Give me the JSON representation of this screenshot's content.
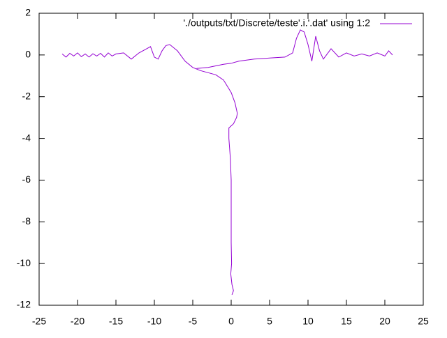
{
  "chart_data": {
    "type": "line",
    "x": [
      -22,
      -21.5,
      -21,
      -20.5,
      -20,
      -19.5,
      -19,
      -18.5,
      -18,
      -17.5,
      -17,
      -16.5,
      -16,
      -15.5,
      -15,
      -14,
      -13,
      -12,
      -11,
      -10.5,
      -10,
      -9.5,
      -9,
      -8.5,
      -8,
      -7,
      -6,
      -5,
      -4,
      -3,
      -2,
      -1,
      -0.5,
      0,
      0.5,
      0.8,
      0.7,
      0.3,
      -0.3,
      -0.3,
      -0.2,
      -0.1,
      0,
      0,
      0,
      0,
      0.05,
      -0.05,
      0.1,
      0.3,
      0.1,
      null,
      -4.5,
      -3,
      -1,
      0,
      1,
      2,
      3,
      5,
      7,
      8,
      8.5,
      9,
      9.5,
      10,
      10.5,
      11,
      11.5,
      12,
      13,
      14,
      15,
      16,
      17,
      18,
      19,
      20,
      20.5,
      21
    ],
    "series": [
      {
        "name": "'./outputs/txt/Discrete/teste'.i.'.dat' using 1:2",
        "color": "#9400d3",
        "values": [
          0.05,
          -0.1,
          0.08,
          -0.05,
          0.1,
          -0.08,
          0.05,
          -0.1,
          0.06,
          -0.05,
          0.08,
          -0.1,
          0.1,
          -0.05,
          0.05,
          0.1,
          -0.2,
          0.1,
          0.3,
          0.4,
          -0.1,
          -0.2,
          0.2,
          0.45,
          0.5,
          0.2,
          -0.3,
          -0.6,
          -0.75,
          -0.85,
          -0.95,
          -1.2,
          -1.5,
          -1.8,
          -2.3,
          -2.8,
          -3.0,
          -3.3,
          -3.5,
          -4.0,
          -4.5,
          -5,
          -6,
          -7,
          -8,
          -9,
          -10,
          -10.5,
          -11,
          -11.3,
          -11.5,
          null,
          -0.65,
          -0.6,
          -0.45,
          -0.4,
          -0.3,
          -0.25,
          -0.2,
          -0.15,
          -0.1,
          0.1,
          0.8,
          1.2,
          1.1,
          0.5,
          -0.3,
          0.9,
          0.2,
          -0.2,
          0.3,
          -0.1,
          0.1,
          -0.05,
          0.05,
          -0.05,
          0.1,
          -0.05,
          0.2,
          0
        ]
      }
    ],
    "xlim": [
      -25,
      25
    ],
    "xticks": [
      -25,
      -20,
      -15,
      -10,
      -5,
      0,
      5,
      10,
      15,
      20,
      25
    ],
    "ylim": [
      -12,
      2
    ],
    "yticks": [
      -12,
      -10,
      -8,
      -6,
      -4,
      -2,
      0,
      2
    ],
    "legend": "top-right"
  }
}
